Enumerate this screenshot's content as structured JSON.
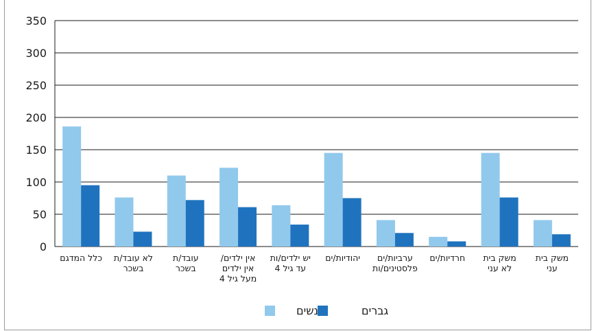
{
  "chart_data": {
    "type": "bar",
    "categories": [
      [
        "כלל המדגם"
      ],
      [
        "לא עובד/ת",
        "בשכר"
      ],
      [
        "עובד/ת",
        "בשכר"
      ],
      [
        "אין ילדים/",
        "אין ילדים",
        "מעל גיל 4"
      ],
      [
        "יש ילדים/ות",
        "עד גיל 4"
      ],
      [
        "יהודיות/ים"
      ],
      [
        "ערביות/ים",
        "פלסטינים/ות"
      ],
      [
        "חרדיות/ים"
      ],
      [
        "משק בית",
        "לא עני"
      ],
      [
        "משק בית",
        "עני"
      ]
    ],
    "series": [
      {
        "name": "נשים",
        "color": "#91c9ec",
        "values": [
          186,
          76,
          110,
          122,
          64,
          145,
          41,
          15,
          145,
          41
        ]
      },
      {
        "name": "גברים",
        "color": "#1f73be",
        "values": [
          95,
          23,
          72,
          61,
          34,
          75,
          21,
          8,
          76,
          19
        ]
      }
    ],
    "ylim": [
      0,
      350
    ],
    "yticks": [
      0,
      50,
      100,
      150,
      200,
      250,
      300,
      350
    ],
    "grid": true,
    "legend_position": "bottom"
  }
}
